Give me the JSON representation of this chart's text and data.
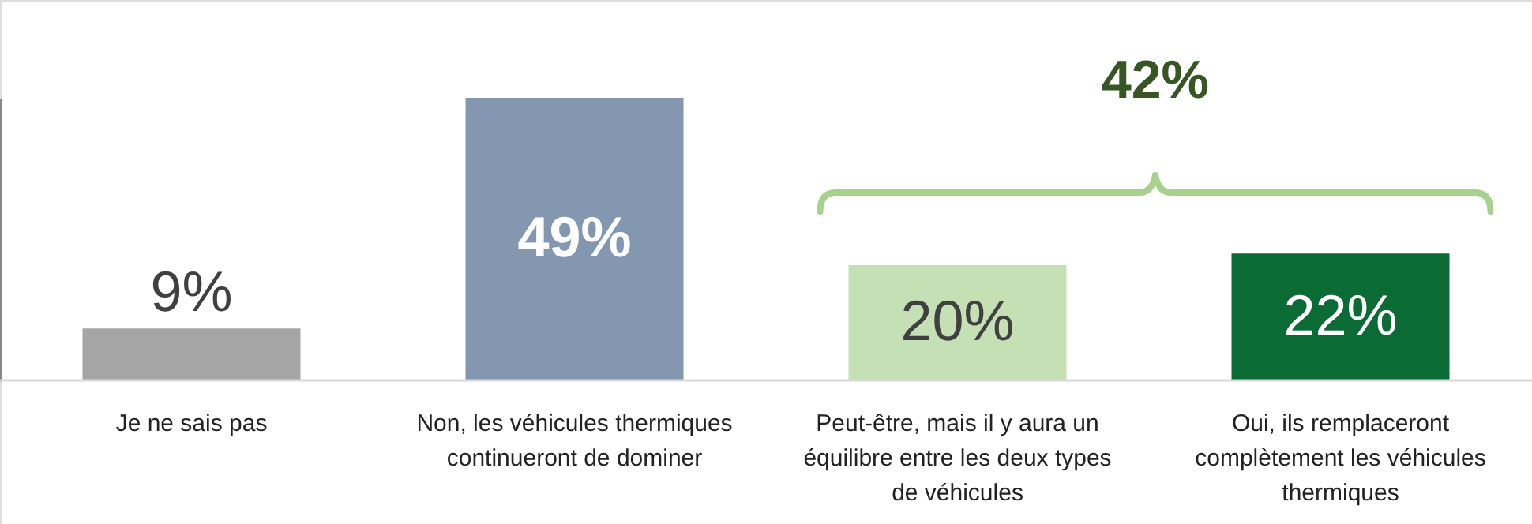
{
  "chart_data": {
    "type": "bar",
    "categories": [
      "Je ne sais pas",
      "Non, les véhicules thermiques continueront de dominer",
      "Peut-être, mais il y aura un équilibre entre les deux types de véhicules",
      "Oui, ils remplaceront complètement les véhicules thermiques"
    ],
    "values": [
      9,
      49,
      20,
      22
    ],
    "colors": [
      "#a5a5a5",
      "#8497b0",
      "#c5e0b4",
      "#0b6b35"
    ],
    "value_labels": [
      "9%",
      "49%",
      "20%",
      "22%"
    ],
    "annotations": [
      "42%"
    ]
  }
}
